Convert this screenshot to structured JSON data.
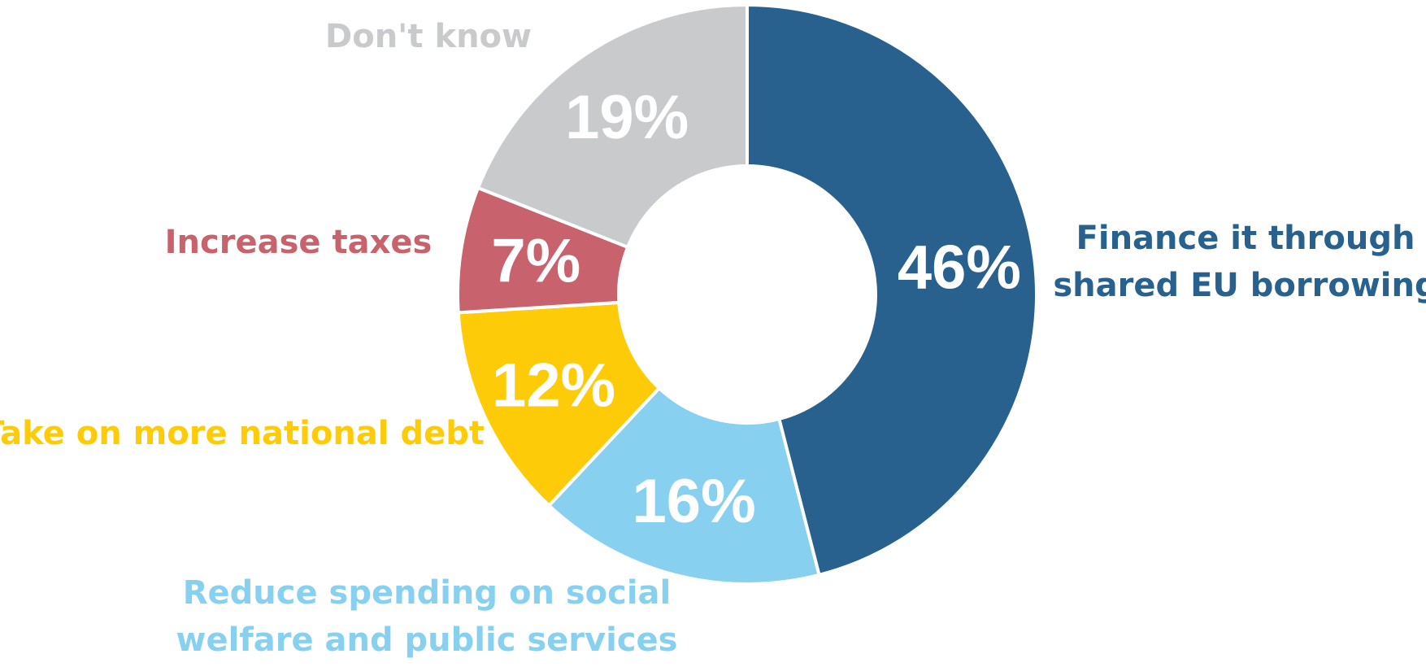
{
  "chart_data": {
    "type": "donut",
    "categories": [
      "Finance it through shared EU borrowing",
      "Reduce spending on social welfare and public services",
      "Take on more national debt",
      "Increase taxes",
      "Don't know"
    ],
    "values": [
      46,
      16,
      12,
      7,
      19
    ],
    "value_labels": [
      "46%",
      "16%",
      "12%",
      "7%",
      "19%"
    ],
    "label_lines": [
      [
        "Finance it through",
        "shared EU borrowing"
      ],
      [
        "Reduce spending on social",
        "welfare and public services"
      ],
      [
        "Take on more national debt"
      ],
      [
        "Increase taxes"
      ],
      [
        "Don't know"
      ]
    ],
    "colors": [
      "#28618e",
      "#87d0ef",
      "#fdcb08",
      "#c8626d",
      "#c9cacc"
    ],
    "start": "12 o'clock",
    "direction": "clockwise",
    "legend": "none"
  }
}
